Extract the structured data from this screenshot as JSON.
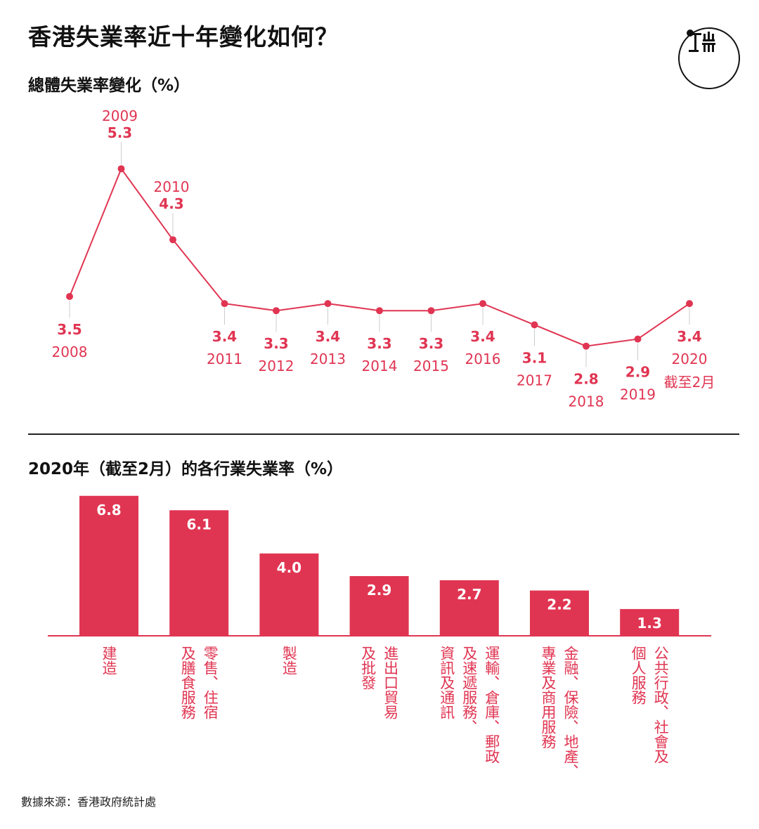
{
  "title": "香港失業率近十年變化如何？",
  "colors": {
    "accent": "#e03552",
    "text": "#111111"
  },
  "logo": {
    "icon": "initium-logo-icon"
  },
  "source": "數據來源：香港政府統計處",
  "chart_data": [
    {
      "type": "line",
      "title": "總體失業率變化（%）",
      "x": [
        "2008",
        "2009",
        "2010",
        "2011",
        "2012",
        "2013",
        "2014",
        "2015",
        "2016",
        "2017",
        "2018",
        "2019",
        "2020"
      ],
      "x_extra": [
        "",
        "",
        "",
        "",
        "",
        "",
        "",
        "",
        "",
        "",
        "",
        "",
        "截至2月"
      ],
      "series": [
        {
          "values": [
            3.5,
            5.3,
            4.3,
            3.4,
            3.3,
            3.4,
            3.3,
            3.3,
            3.4,
            3.1,
            2.8,
            2.9,
            3.4
          ]
        }
      ],
      "label_position": [
        "below",
        "above",
        "above",
        "below",
        "below",
        "below",
        "below",
        "below",
        "below",
        "below",
        "below",
        "below",
        "below"
      ],
      "grid": false
    },
    {
      "type": "bar",
      "title": "2020年（截至2月）的各行業失業率（%）",
      "categories": [
        "建造",
        "零售、住宿及膳食服務",
        "製造",
        "進出口貿易及批發",
        "運輸、倉庫、郵政及速遞服務、資訊及通訊",
        "金融、保險、地產、專業及商用服務",
        "公共行政、社會及個人服務"
      ],
      "category_columns": [
        [
          "建造"
        ],
        [
          "零售、住宿",
          "及膳食服務"
        ],
        [
          "製造"
        ],
        [
          "進出口貿易",
          "及批發"
        ],
        [
          "運輸、倉庫、郵政",
          "及速遞服務、",
          "資訊及通訊"
        ],
        [
          "金融、保險、地產、",
          "專業及商用服務"
        ],
        [
          "公共行政、社會及",
          "個人服務"
        ]
      ],
      "values": [
        6.8,
        6.1,
        4.0,
        2.9,
        2.7,
        2.2,
        1.3
      ],
      "value_labels": [
        "6.8",
        "6.1",
        "4.0",
        "2.9",
        "2.7",
        "2.2",
        "1.3"
      ],
      "grid": false
    }
  ]
}
